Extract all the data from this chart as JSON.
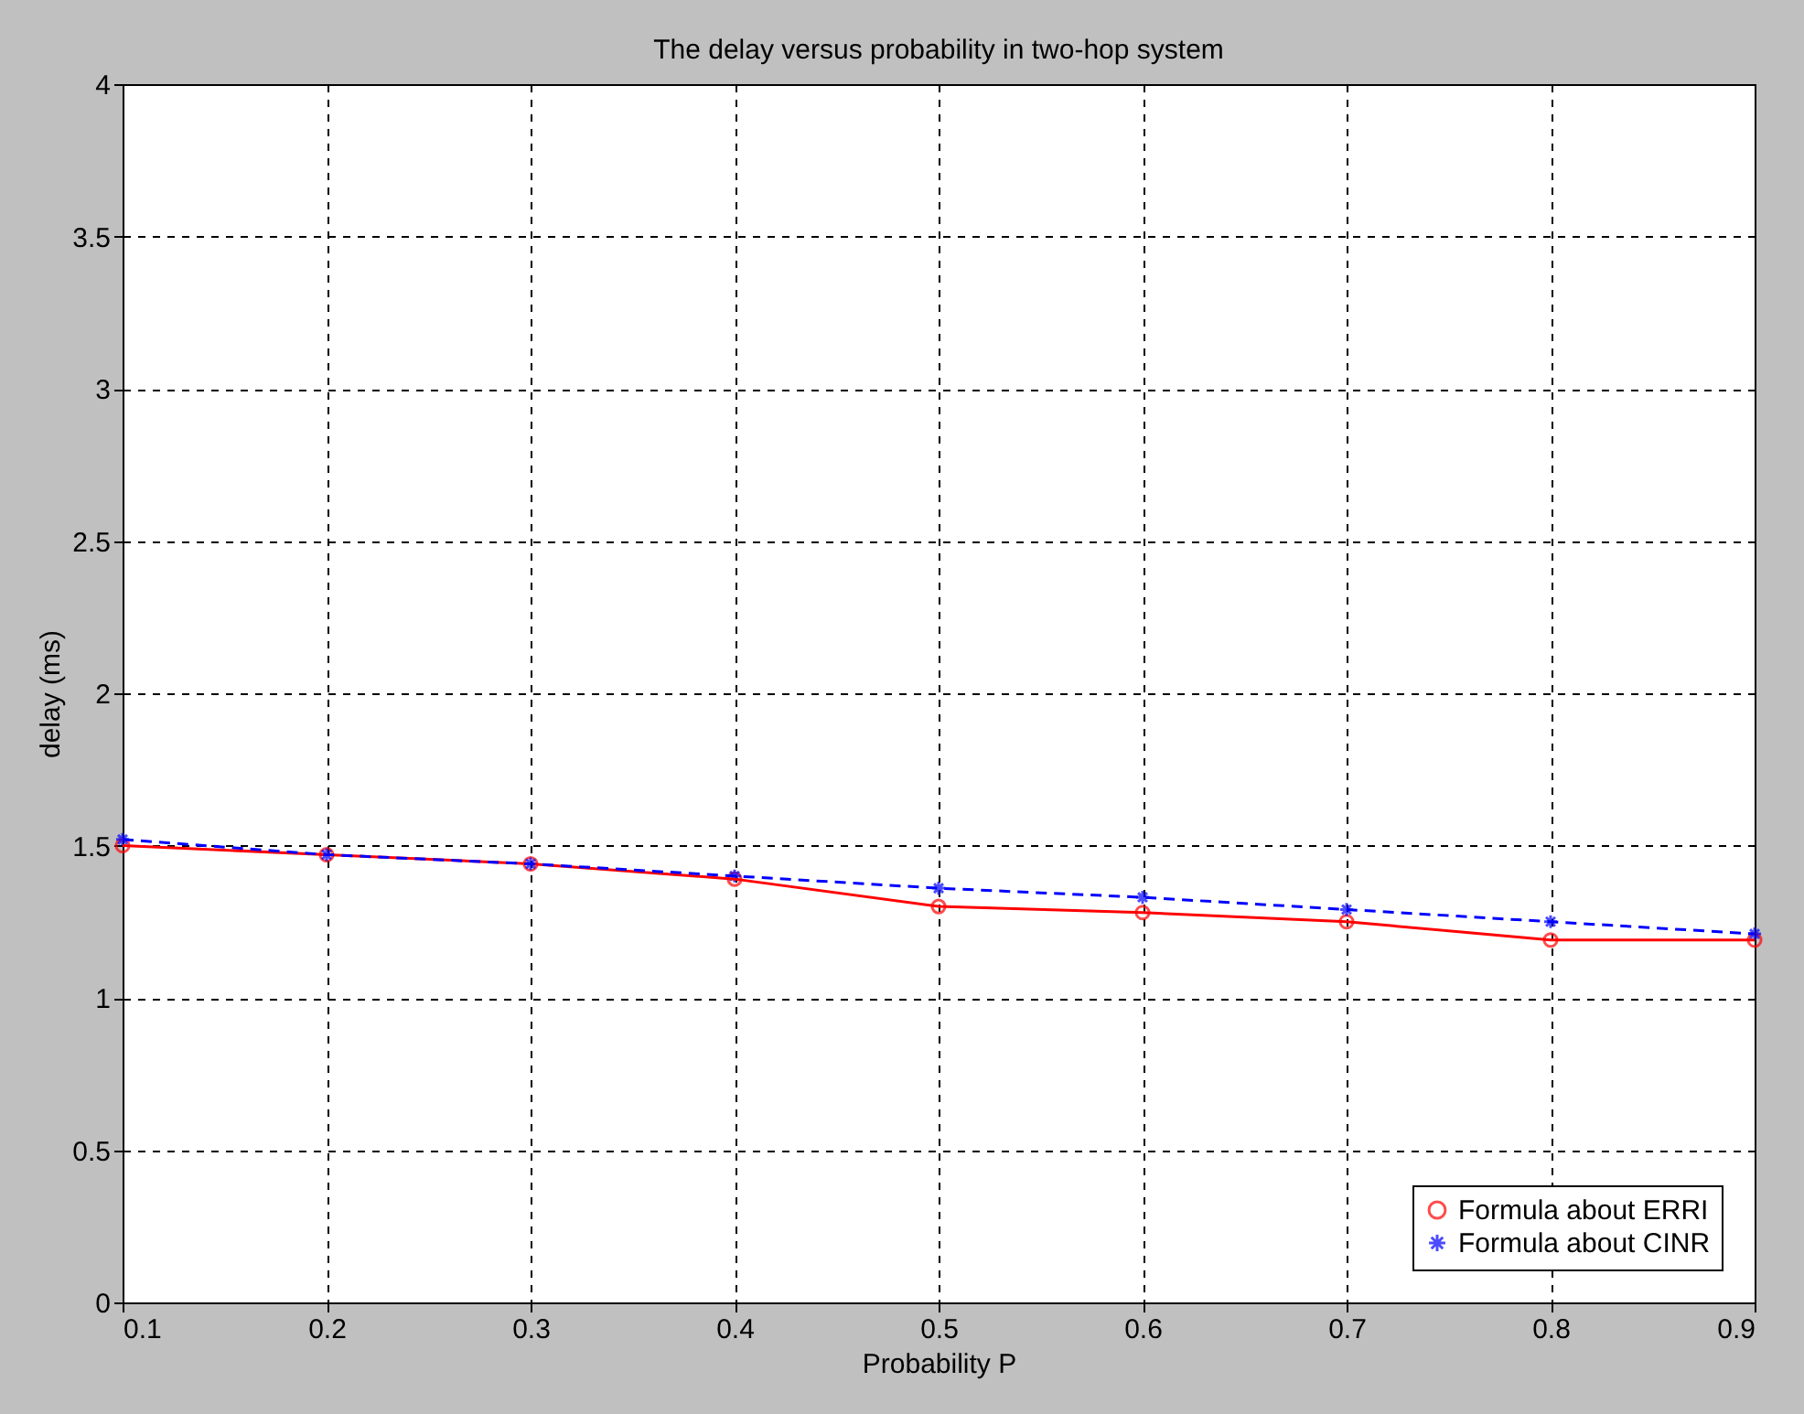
{
  "chart_data": {
    "type": "line",
    "title": "The delay versus probability in two-hop system",
    "xlabel": "Probability P",
    "ylabel": "delay (ms)",
    "x": [
      0.1,
      0.2,
      0.3,
      0.4,
      0.5,
      0.6,
      0.7,
      0.8,
      0.9
    ],
    "series": [
      {
        "name": "Formula about ERRI",
        "color": "#ff0000",
        "marker": "circle",
        "line_style": "solid",
        "values": [
          1.5,
          1.47,
          1.44,
          1.39,
          1.3,
          1.28,
          1.25,
          1.19,
          1.19
        ]
      },
      {
        "name": "Formula about CINR",
        "color": "#0000ff",
        "marker": "cross",
        "line_style": "dashed",
        "values": [
          1.52,
          1.47,
          1.44,
          1.4,
          1.36,
          1.33,
          1.29,
          1.25,
          1.21
        ]
      }
    ],
    "xlim": [
      0.1,
      0.9
    ],
    "xticks": [
      0.1,
      0.2,
      0.3,
      0.4,
      0.5,
      0.6,
      0.7,
      0.8,
      0.9
    ],
    "ylim": [
      0,
      4
    ],
    "yticks": [
      0,
      0.5,
      1,
      1.5,
      2,
      2.5,
      3,
      3.5,
      4
    ],
    "grid": true,
    "legend": "bottom right"
  }
}
